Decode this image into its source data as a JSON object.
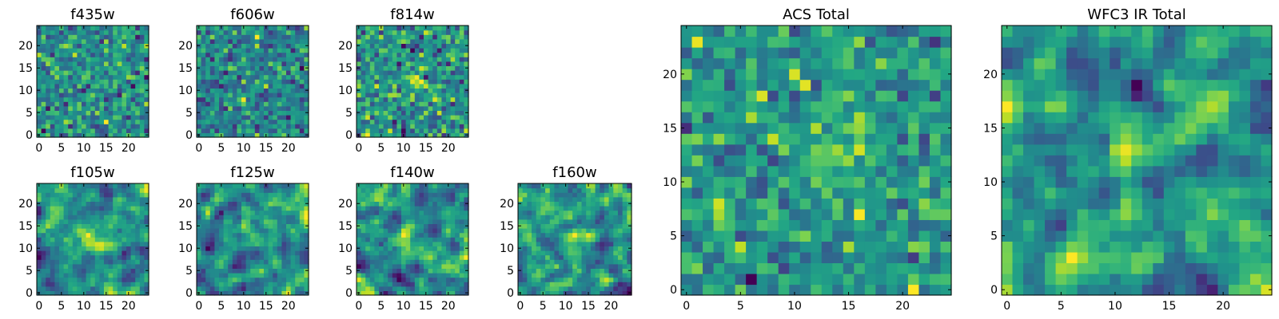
{
  "chart_data": [
    {
      "type": "heatmap",
      "title": "f435w",
      "grid_size": 25,
      "colormap": "viridis",
      "xticks": [
        0,
        5,
        10,
        15,
        20
      ],
      "yticks": [
        0,
        5,
        10,
        15,
        20
      ],
      "xlim": [
        -0.5,
        24.5
      ],
      "ylim": [
        -0.5,
        24.5
      ],
      "pattern": "noise",
      "seed": 435
    },
    {
      "type": "heatmap",
      "title": "f606w",
      "grid_size": 25,
      "colormap": "viridis",
      "xticks": [
        0,
        5,
        10,
        15,
        20
      ],
      "yticks": [
        0,
        5,
        10,
        15,
        20
      ],
      "xlim": [
        -0.5,
        24.5
      ],
      "ylim": [
        -0.5,
        24.5
      ],
      "pattern": "noise",
      "seed": 606
    },
    {
      "type": "heatmap",
      "title": "f814w",
      "grid_size": 25,
      "colormap": "viridis",
      "xticks": [
        0,
        5,
        10,
        15,
        20
      ],
      "yticks": [
        0,
        5,
        10,
        15,
        20
      ],
      "xlim": [
        -0.5,
        24.5
      ],
      "ylim": [
        -0.5,
        24.5
      ],
      "pattern": "noise_with_center",
      "seed": 814
    },
    {
      "type": "heatmap",
      "title": "f105w",
      "grid_size": 25,
      "colormap": "viridis",
      "xticks": [
        0,
        5,
        10,
        15,
        20
      ],
      "yticks": [
        0,
        5,
        10,
        15,
        20
      ],
      "xlim": [
        -0.5,
        24.5
      ],
      "ylim": [
        -0.5,
        24.5
      ],
      "pattern": "smooth_with_center",
      "seed": 105
    },
    {
      "type": "heatmap",
      "title": "f125w",
      "grid_size": 25,
      "colormap": "viridis",
      "xticks": [
        0,
        5,
        10,
        15,
        20
      ],
      "yticks": [
        0,
        5,
        10,
        15,
        20
      ],
      "xlim": [
        -0.5,
        24.5
      ],
      "ylim": [
        -0.5,
        24.5
      ],
      "pattern": "smooth_with_center",
      "seed": 125
    },
    {
      "type": "heatmap",
      "title": "f140w",
      "grid_size": 25,
      "colormap": "viridis",
      "xticks": [
        0,
        5,
        10,
        15,
        20
      ],
      "yticks": [
        0,
        5,
        10,
        15,
        20
      ],
      "xlim": [
        -0.5,
        24.5
      ],
      "ylim": [
        -0.5,
        24.5
      ],
      "pattern": "smooth_with_center",
      "seed": 140
    },
    {
      "type": "heatmap",
      "title": "f160w",
      "grid_size": 25,
      "colormap": "viridis",
      "xticks": [
        0,
        5,
        10,
        15,
        20
      ],
      "yticks": [
        0,
        5,
        10,
        15,
        20
      ],
      "xlim": [
        -0.5,
        24.5
      ],
      "ylim": [
        -0.5,
        24.5
      ],
      "pattern": "smooth_with_center",
      "seed": 160
    },
    {
      "type": "heatmap",
      "title": "ACS Total",
      "grid_size": 25,
      "colormap": "viridis",
      "xticks": [
        0,
        5,
        10,
        15,
        20
      ],
      "yticks": [
        0,
        5,
        10,
        15,
        20
      ],
      "xlim": [
        -0.5,
        24.5
      ],
      "ylim": [
        -0.5,
        24.5
      ],
      "pattern": "noise_with_center",
      "seed": 1001
    },
    {
      "type": "heatmap",
      "title": "WFC3 IR Total",
      "grid_size": 25,
      "colormap": "viridis",
      "xticks": [
        0,
        5,
        10,
        15,
        20
      ],
      "yticks": [
        0,
        5,
        10,
        15,
        20
      ],
      "xlim": [
        -0.5,
        24.5
      ],
      "ylim": [
        -0.5,
        24.5
      ],
      "pattern": "smooth_with_center",
      "seed": 2002
    }
  ]
}
